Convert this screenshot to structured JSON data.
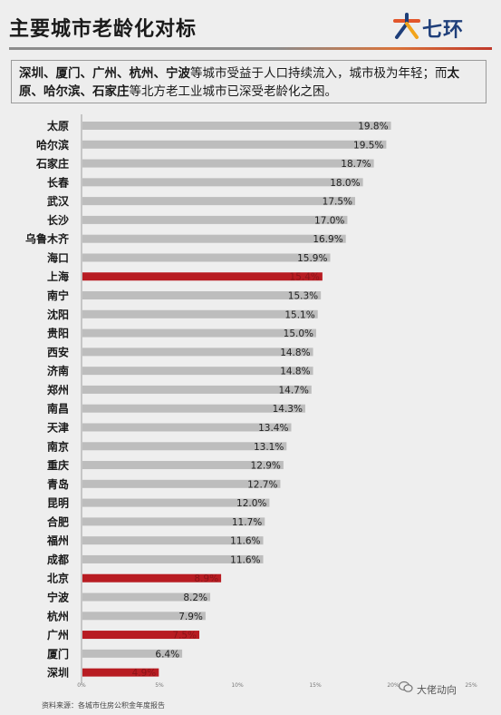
{
  "header": {
    "title": "主要城市老龄化对标",
    "logo_text": "七环",
    "logo_icon": "seven-ring-logo-icon"
  },
  "summary": {
    "part1": "深圳、厦门、广州、杭州、宁波",
    "part2": "等城市受益于人口持续流入，城市极为年轻；而",
    "part3": "太原、哈尔滨、石家庄",
    "part4": "等北方老工业城市已深受老龄化之困。"
  },
  "chart_data": {
    "type": "bar",
    "orientation": "horizontal",
    "title": "",
    "xlabel": "",
    "ylabel": "",
    "xlim": [
      0,
      25
    ],
    "x_ticks": [
      0,
      5,
      10,
      15,
      20,
      25
    ],
    "x_tick_labels": [
      "0%",
      "5%",
      "10%",
      "15%",
      "20%",
      "25%"
    ],
    "grid": false,
    "categories": [
      "太原",
      "哈尔滨",
      "石家庄",
      "长春",
      "武汉",
      "长沙",
      "乌鲁木齐",
      "海口",
      "上海",
      "南宁",
      "沈阳",
      "贵阳",
      "西安",
      "济南",
      "郑州",
      "南昌",
      "天津",
      "南京",
      "重庆",
      "青岛",
      "昆明",
      "合肥",
      "福州",
      "成都",
      "北京",
      "宁波",
      "杭州",
      "广州",
      "厦门",
      "深圳"
    ],
    "values": [
      19.8,
      19.5,
      18.7,
      18.0,
      17.5,
      17.0,
      16.9,
      15.9,
      15.4,
      15.3,
      15.1,
      15.0,
      14.8,
      14.8,
      14.7,
      14.3,
      13.4,
      13.1,
      12.9,
      12.7,
      12.0,
      11.7,
      11.6,
      11.6,
      8.9,
      8.2,
      7.9,
      7.5,
      6.4,
      4.9
    ],
    "value_labels": [
      "19.8%",
      "19.5%",
      "18.7%",
      "18.0%",
      "17.5%",
      "17.0%",
      "16.9%",
      "15.9%",
      "15.4%",
      "15.3%",
      "15.1%",
      "15.0%",
      "14.8%",
      "14.8%",
      "14.7%",
      "14.3%",
      "13.4%",
      "13.1%",
      "12.9%",
      "12.7%",
      "12.0%",
      "11.7%",
      "11.6%",
      "11.6%",
      "8.9%",
      "8.2%",
      "7.9%",
      "7.5%",
      "6.4%",
      "4.9%"
    ],
    "highlighted": [
      "上海",
      "北京",
      "广州",
      "深圳"
    ],
    "colors": {
      "bar": "#bdbdbd",
      "highlight": "#b81c22",
      "bar_label": "#222222",
      "highlight_label": "#8a1418"
    }
  },
  "footer": {
    "source": "资料来源：各城市住房公积金年度报告"
  },
  "watermark": {
    "text": "大佬动向",
    "icon": "wechat-icon"
  }
}
